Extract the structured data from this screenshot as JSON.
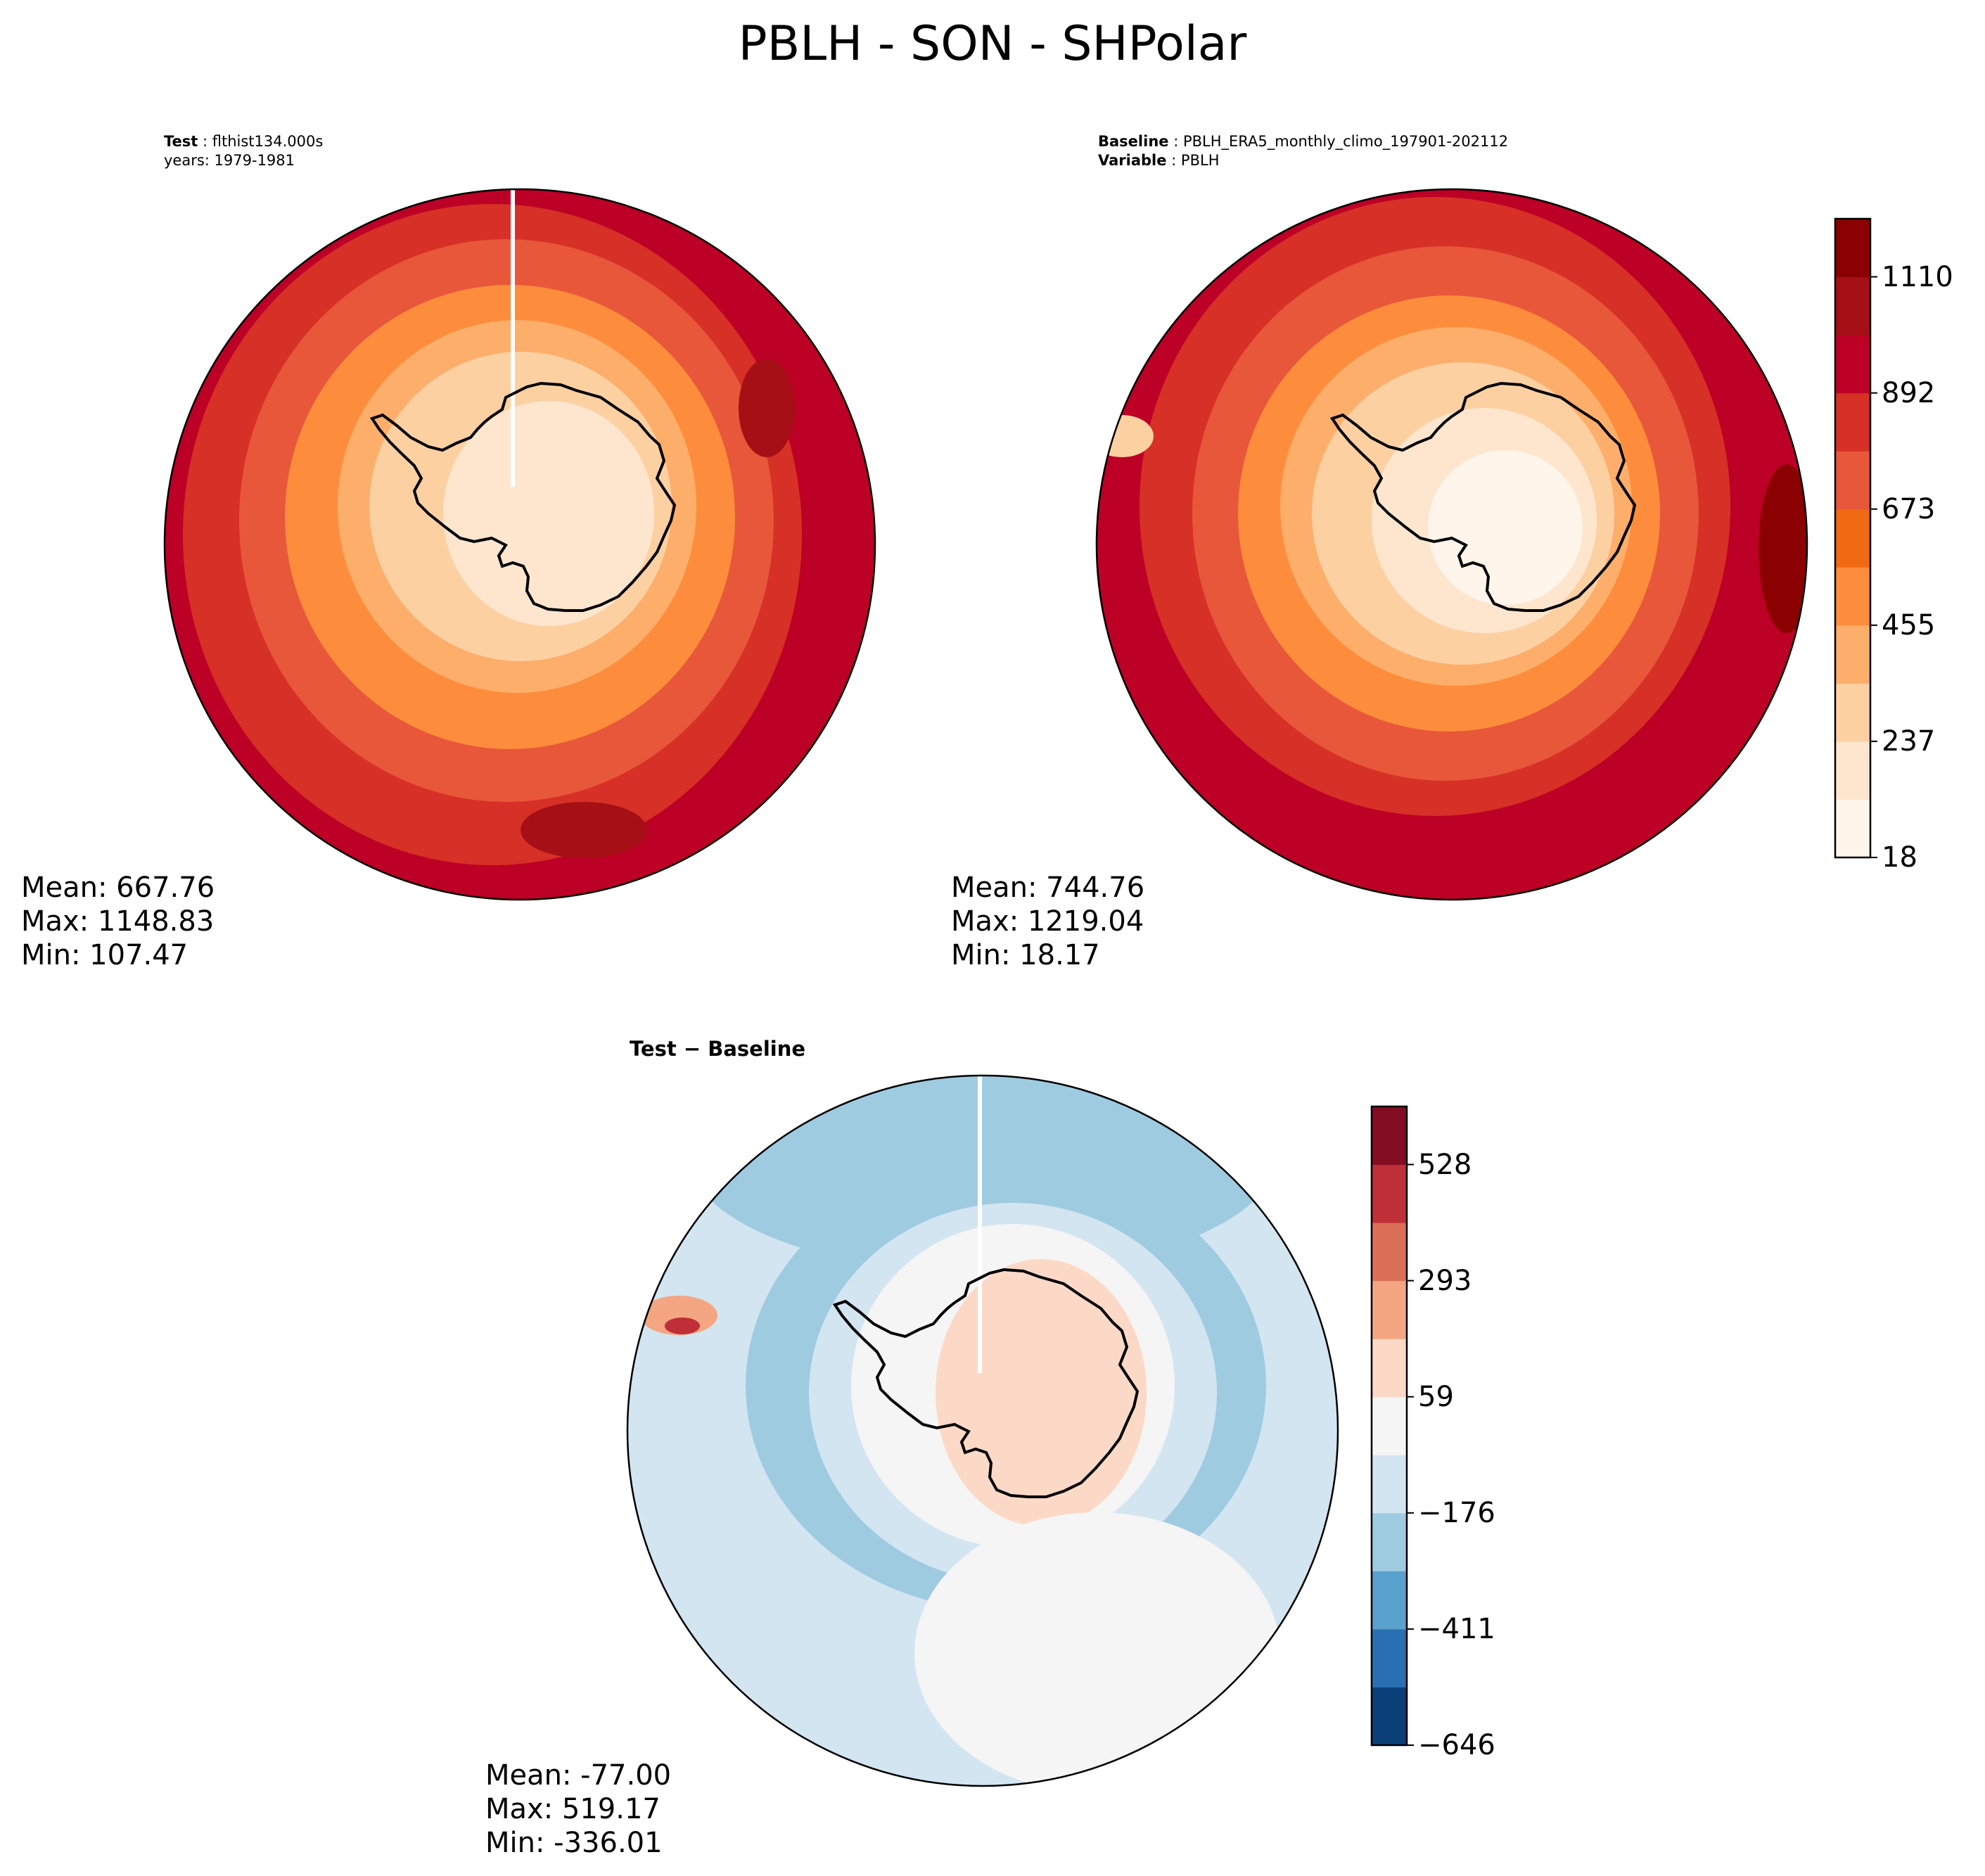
{
  "title": "PBLH - SON - SHPolar",
  "test_panel": {
    "label_key": "Test",
    "label_value": "flthist134.000s",
    "years": "years: 1979-1981",
    "stats": {
      "mean": "Mean: 667.76",
      "max": "Max: 1148.83",
      "min": "Min: 107.47"
    }
  },
  "baseline_panel": {
    "label_key": "Baseline",
    "label_value": "PBLH_ERA5_monthly_climo_197901-202112",
    "variable_key": "Variable",
    "variable_value": "PBLH",
    "stats": {
      "mean": "Mean: 744.76",
      "max": "Max: 1219.04",
      "min": "Min: 18.17"
    }
  },
  "diff_panel": {
    "title": "Test − Baseline",
    "stats": {
      "mean": "Mean: -77.00",
      "max": "Max: 519.17",
      "min": "Min: -336.01"
    }
  },
  "colorbar_main": {
    "ticks": [
      "18",
      "237",
      "455",
      "673",
      "892",
      "1110"
    ],
    "colors": [
      "#fff5eb",
      "#fee6ce",
      "#fdd0a2",
      "#fdae6b",
      "#fd8d3c",
      "#f16913",
      "#e8573a",
      "#d73027",
      "#bd0026",
      "#a50f15",
      "#8b0000"
    ]
  },
  "colorbar_diff": {
    "ticks": [
      "−646",
      "−411",
      "−176",
      "59",
      "293",
      "528"
    ],
    "colors": [
      "#0b3f78",
      "#2870b1",
      "#5aa0cc",
      "#9fcbe1",
      "#d3e5f1",
      "#f5f5f5",
      "#fcd9c6",
      "#f4a683",
      "#dc6f57",
      "#bf2f37",
      "#830d23"
    ]
  }
}
